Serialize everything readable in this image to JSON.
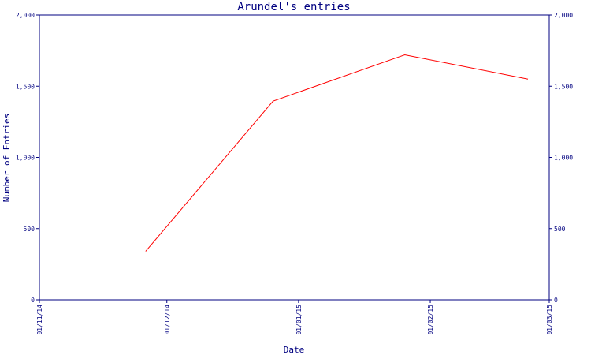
{
  "chart_data": {
    "type": "line",
    "title": "Arundel's entries",
    "xlabel": "Date",
    "ylabel": "Number of Entries",
    "x_ticks": [
      "01/11/14",
      "01/12/14",
      "01/01/15",
      "01/02/15",
      "01/03/15"
    ],
    "x_range": [
      "2014-11-01",
      "2015-03-01"
    ],
    "y_ticks": [
      "0",
      "500",
      "1,000",
      "1,500",
      "2,000"
    ],
    "y_right_ticks": [
      "0",
      "500",
      "1,000",
      "1,500",
      "2,000"
    ],
    "ylim": [
      0,
      2000
    ],
    "grid": false,
    "series": [
      {
        "color": "#ff0000",
        "points": [
          {
            "x": "2014-11-26",
            "y": 340
          },
          {
            "x": "2014-12-26",
            "y": 1395
          },
          {
            "x": "2015-01-26",
            "y": 1720
          },
          {
            "x": "2015-02-24",
            "y": 1550
          }
        ]
      }
    ],
    "colors": {
      "axis": "#000080",
      "text": "#000080",
      "line": "#ff0000",
      "background": "#ffffff"
    }
  }
}
